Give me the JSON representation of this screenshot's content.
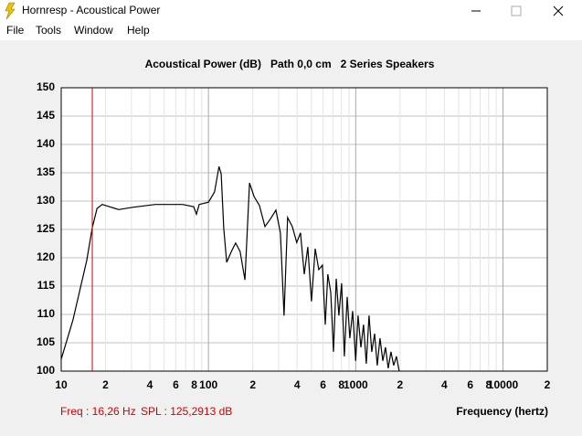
{
  "window": {
    "title": "Hornresp - Acoustical Power",
    "menu": [
      "File",
      "Tools",
      "Window",
      "Help"
    ]
  },
  "chart_data": {
    "type": "line",
    "title": "Acoustical Power (dB)   Path 0,0 cm   2 Series Speakers",
    "x_label": "Frequency (hertz)",
    "log_x": true,
    "grid": true,
    "xlim": [
      10,
      20000
    ],
    "ylim": [
      100,
      150
    ],
    "xticks": [
      10,
      {
        "value": 20,
        "label": "2"
      },
      {
        "value": 40,
        "label": "4"
      },
      {
        "value": 60,
        "label": "6"
      },
      {
        "value": 80,
        "label": "8"
      },
      100,
      {
        "value": 200,
        "label": "2"
      },
      {
        "value": 400,
        "label": "4"
      },
      {
        "value": 600,
        "label": "6"
      },
      {
        "value": 800,
        "label": "8"
      },
      1000,
      {
        "value": 2000,
        "label": "2"
      },
      {
        "value": 4000,
        "label": "4"
      },
      {
        "value": 6000,
        "label": "6"
      },
      {
        "value": 8000,
        "label": "8"
      },
      10000,
      {
        "value": 20000,
        "label": "2"
      }
    ],
    "x_minor_ticks": [
      30,
      50,
      70,
      90,
      300,
      500,
      700,
      900,
      3000,
      5000,
      7000,
      9000
    ],
    "yticks": [
      100,
      105,
      110,
      115,
      120,
      125,
      130,
      135,
      140,
      145,
      150
    ],
    "cursor_x": 16.26,
    "cursor_color": "#d00000",
    "readouts": [
      "Freq : 16,26 Hz",
      "SPL : 125,2913 dB"
    ],
    "series": [
      {
        "color": "#000000",
        "x": [
          10,
          12.0,
          14.9,
          16.26,
          17.5,
          19.0,
          21.3,
          24.6,
          30.5,
          43.5,
          66.8,
          79.4,
          82.8,
          86.5,
          100,
          110,
          118,
          122,
          127,
          133,
          143,
          153,
          164,
          177,
          190,
          204,
          222,
          242,
          263,
          287,
          308,
          326,
          345,
          371,
          398,
          422,
          447,
          473,
          501,
          531,
          561,
          594,
          621,
          647,
          677,
          706,
          737,
          769,
          802,
          837,
          875,
          912,
          953,
          1000,
          1038,
          1084,
          1130,
          1180,
          1231,
          1285,
          1343,
          1400,
          1462,
          1527,
          1593,
          1663,
          1735,
          1811,
          1891,
          1973
        ],
        "values": [
          102.1,
          109.0,
          119.5,
          125.3,
          128.7,
          129.4,
          129.0,
          128.5,
          128.9,
          129.4,
          129.4,
          129.0,
          127.7,
          129.4,
          129.8,
          131.6,
          136.1,
          134.8,
          125.2,
          119.2,
          121.1,
          122.6,
          121.1,
          116.1,
          133.2,
          130.8,
          129.2,
          125.5,
          126.8,
          128.4,
          124.4,
          109.8,
          127.1,
          125.5,
          122.7,
          124.4,
          117.1,
          121.9,
          112.3,
          121.6,
          117.9,
          118.7,
          108.2,
          117.1,
          113.9,
          103.4,
          116.3,
          109.8,
          115.5,
          102.6,
          113.1,
          105.8,
          110.6,
          101.8,
          109.8,
          104.2,
          108.2,
          101.3,
          109.8,
          103.4,
          106.6,
          101.0,
          105.8,
          101.8,
          104.2,
          100.5,
          103.4,
          101.0,
          102.6,
          100.0
        ]
      }
    ]
  }
}
